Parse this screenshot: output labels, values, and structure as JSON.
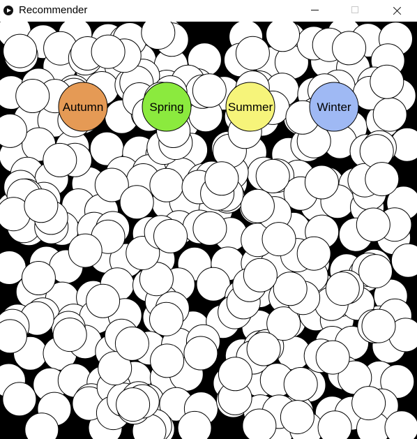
{
  "window": {
    "title": "Recommender",
    "app_icon": "play-icon",
    "controls": [
      "minimize-icon",
      "maximize-icon",
      "close-icon"
    ]
  },
  "canvas": {
    "background": "#000000",
    "bubble_fill": "#ffffff",
    "bubble_stroke": "#000000"
  },
  "categories": [
    {
      "label": "Autumn",
      "color": "#e59a55"
    },
    {
      "label": "Spring",
      "color": "#8bea3e"
    },
    {
      "label": "Summer",
      "color": "#f6f47a"
    },
    {
      "label": "Winter",
      "color": "#9fb9f4"
    }
  ]
}
